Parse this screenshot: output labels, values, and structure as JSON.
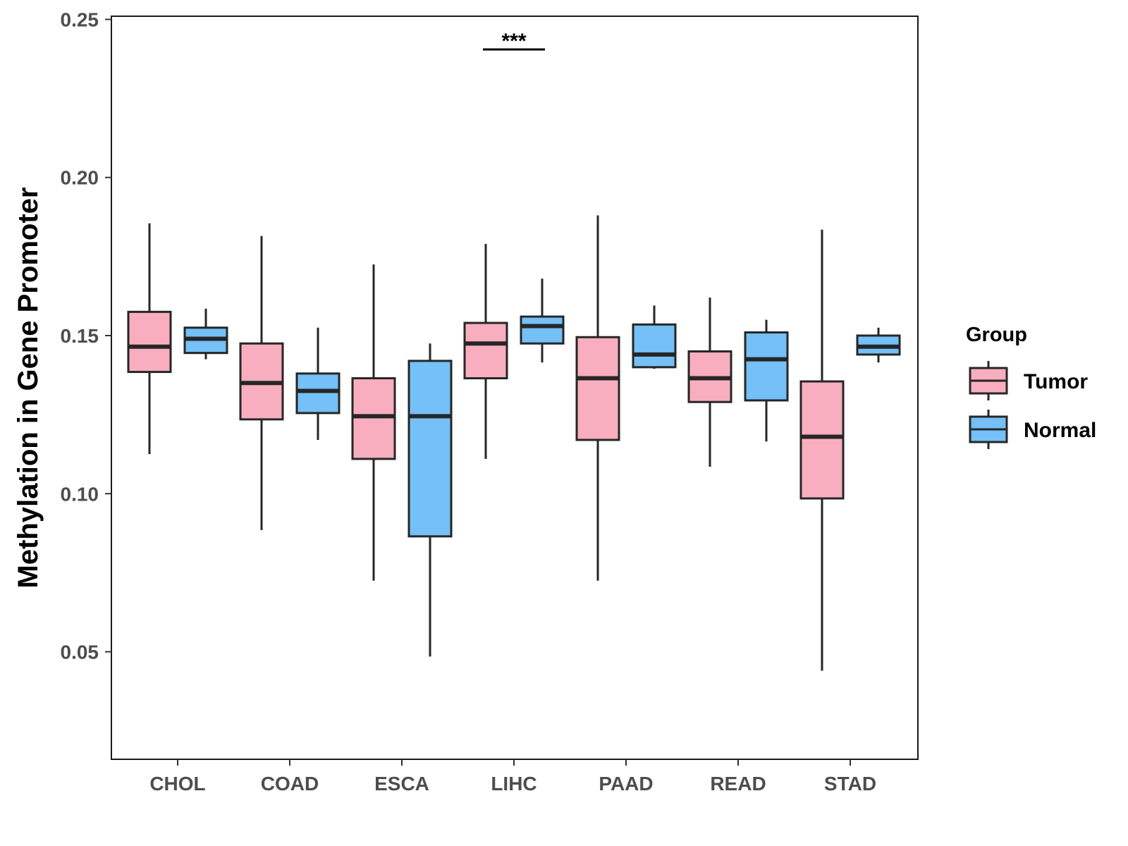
{
  "chart_data": {
    "type": "boxplot",
    "title": "",
    "xlabel": "",
    "ylabel": "Methylation in Gene Promoter",
    "ylim": [
      0.016,
      0.251
    ],
    "yticks": [
      0.05,
      0.1,
      0.15,
      0.2,
      0.25
    ],
    "ytick_labels": [
      "0.05",
      "0.10",
      "0.15",
      "0.20",
      "0.25"
    ],
    "categories": [
      "CHOL",
      "COAD",
      "ESCA",
      "LIHC",
      "PAAD",
      "READ",
      "STAD"
    ],
    "legend": {
      "title": "Group",
      "placement": "right",
      "entries": [
        {
          "name": "Tumor",
          "color": "#f9aec0"
        },
        {
          "name": "Normal",
          "color": "#74c0f7"
        }
      ]
    },
    "series": [
      {
        "name": "Tumor",
        "color": "#f9aec0",
        "boxes": [
          {
            "category": "CHOL",
            "min": 0.1125,
            "q1": 0.1385,
            "median": 0.1465,
            "q3": 0.1575,
            "max": 0.1855
          },
          {
            "category": "COAD",
            "min": 0.0885,
            "q1": 0.1235,
            "median": 0.135,
            "q3": 0.1475,
            "max": 0.1815
          },
          {
            "category": "ESCA",
            "min": 0.0725,
            "q1": 0.111,
            "median": 0.1245,
            "q3": 0.1365,
            "max": 0.1725
          },
          {
            "category": "LIHC",
            "min": 0.111,
            "q1": 0.1365,
            "median": 0.1475,
            "q3": 0.154,
            "max": 0.179
          },
          {
            "category": "PAAD",
            "min": 0.0725,
            "q1": 0.117,
            "median": 0.1365,
            "q3": 0.1495,
            "max": 0.188
          },
          {
            "category": "READ",
            "min": 0.1085,
            "q1": 0.129,
            "median": 0.1365,
            "q3": 0.145,
            "max": 0.162
          },
          {
            "category": "STAD",
            "min": 0.044,
            "q1": 0.0985,
            "median": 0.118,
            "q3": 0.1355,
            "max": 0.1835
          }
        ]
      },
      {
        "name": "Normal",
        "color": "#74c0f7",
        "boxes": [
          {
            "category": "CHOL",
            "min": 0.1425,
            "q1": 0.1445,
            "median": 0.149,
            "q3": 0.1525,
            "max": 0.1585
          },
          {
            "category": "COAD",
            "min": 0.117,
            "q1": 0.1255,
            "median": 0.1325,
            "q3": 0.138,
            "max": 0.1525
          },
          {
            "category": "ESCA",
            "min": 0.0485,
            "q1": 0.0865,
            "median": 0.1245,
            "q3": 0.142,
            "max": 0.1475
          },
          {
            "category": "LIHC",
            "min": 0.1415,
            "q1": 0.1475,
            "median": 0.153,
            "q3": 0.156,
            "max": 0.168
          },
          {
            "category": "PAAD",
            "min": 0.1395,
            "q1": 0.14,
            "median": 0.144,
            "q3": 0.1535,
            "max": 0.1595
          },
          {
            "category": "READ",
            "min": 0.1165,
            "q1": 0.1295,
            "median": 0.1425,
            "q3": 0.151,
            "max": 0.155
          },
          {
            "category": "STAD",
            "min": 0.1415,
            "q1": 0.144,
            "median": 0.1465,
            "q3": 0.15,
            "max": 0.1525
          }
        ]
      }
    ],
    "annotations": [
      {
        "category": "LIHC",
        "text": "***",
        "y": 0.2405
      }
    ]
  }
}
